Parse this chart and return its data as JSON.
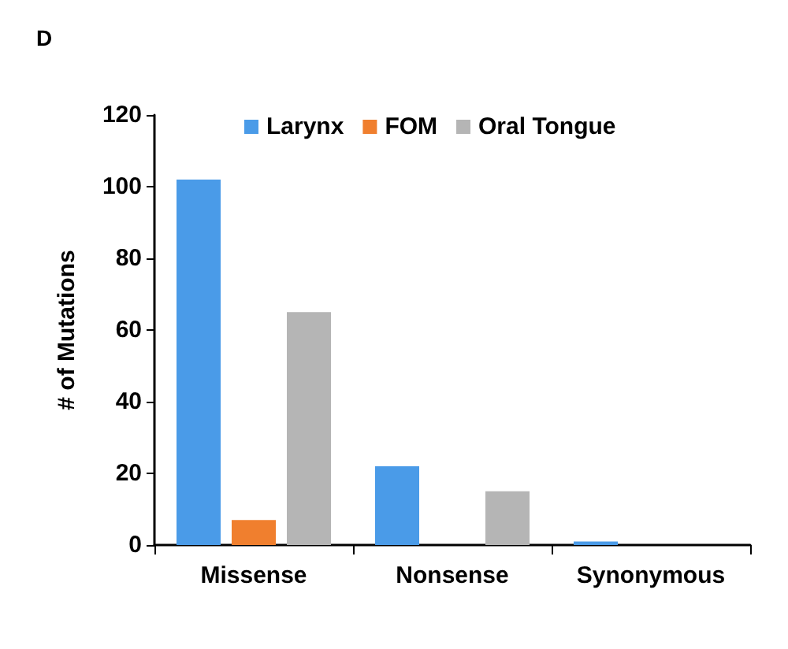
{
  "chart_data": {
    "type": "bar",
    "title": "D",
    "ylabel": "# of Mutations",
    "categories": [
      "Missense",
      "Nonsense",
      "Synonymous"
    ],
    "series": [
      {
        "name": "Larynx",
        "color": "#4a9be8",
        "values": [
          102,
          22,
          1
        ]
      },
      {
        "name": "FOM",
        "color": "#f07f2e",
        "values": [
          7,
          0,
          0
        ]
      },
      {
        "name": "Oral Tongue",
        "color": "#b5b5b5",
        "values": [
          65,
          15,
          0
        ]
      }
    ],
    "ylim": [
      0,
      120
    ],
    "yticks": [
      0,
      20,
      40,
      60,
      80,
      100,
      120
    ],
    "grid": false,
    "legend": "top"
  }
}
